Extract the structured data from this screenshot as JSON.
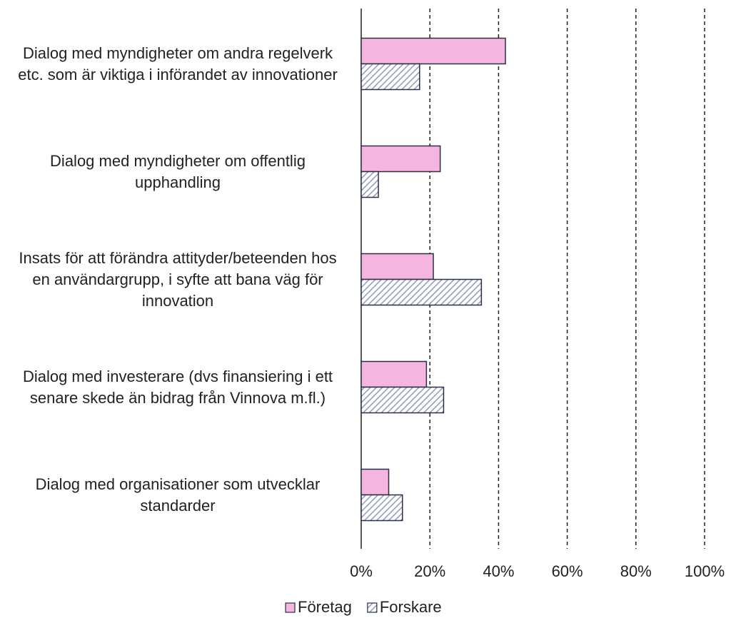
{
  "chart_data": {
    "type": "hbar",
    "categories": [
      "Dialog med myndigheter om andra regelverk etc. som är viktiga i införandet av innovationer",
      "Dialog med myndigheter om offentlig upphandling",
      "Insats för att förändra attityder/beteenden hos en användargrupp, i syfte att bana väg för innovation",
      "Dialog med investerare (dvs finansiering i ett senare skede än bidrag från Vinnova m.fl.)",
      "Dialog med organisationer som utvecklar standarder"
    ],
    "series": [
      {
        "name": "Företag",
        "color": "#f4b6de",
        "values": [
          42,
          23,
          21,
          19,
          8
        ]
      },
      {
        "name": "Forskare",
        "color": "#9aa6c4",
        "pattern": "hatch",
        "values": [
          17,
          5,
          35,
          24,
          12
        ]
      }
    ],
    "xlim": [
      0,
      100
    ],
    "xticks": [
      {
        "value": 0,
        "label": "0%"
      },
      {
        "value": 20,
        "label": "20%"
      },
      {
        "value": 40,
        "label": "40%"
      },
      {
        "value": 60,
        "label": "60%"
      },
      {
        "value": 80,
        "label": "80%"
      },
      {
        "value": 100,
        "label": "100%"
      }
    ],
    "grid": true,
    "legend": "bottom"
  }
}
